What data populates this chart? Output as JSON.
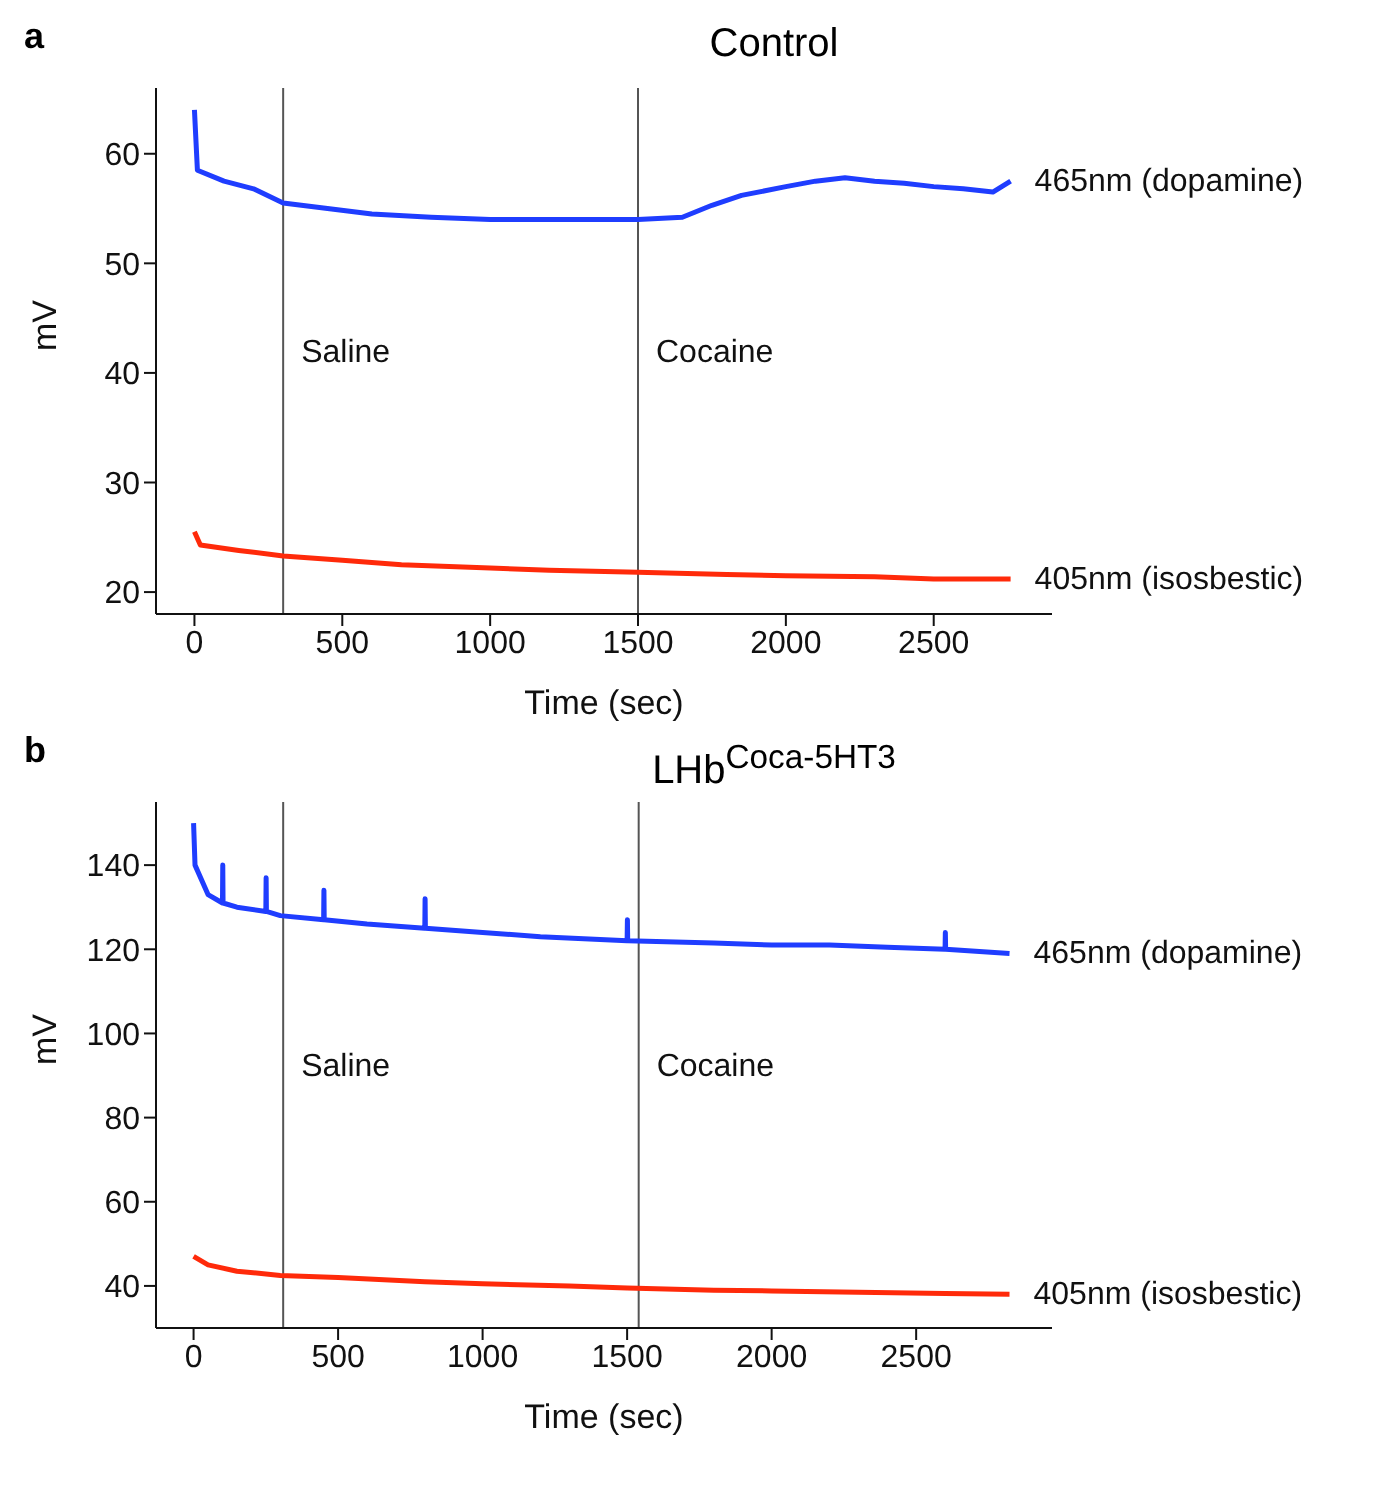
{
  "chart_data": [
    {
      "type": "line",
      "title": "Control",
      "annotations": [
        "a"
      ],
      "xlabel": "Time (sec)",
      "ylabel": "mV",
      "xlim": [
        -130,
        2900
      ],
      "xticks": [
        0,
        500,
        1000,
        1500,
        2000,
        2500
      ],
      "ylim": [
        18,
        66
      ],
      "yticks": [
        20,
        30,
        40,
        50,
        60
      ],
      "grid": false,
      "legend": false,
      "ref_lines": [
        {
          "axis": "x",
          "value": 300,
          "label": "Saline",
          "color": "#555555"
        },
        {
          "axis": "x",
          "value": 1500,
          "label": "Cocaine",
          "color": "#555555"
        }
      ],
      "series": [
        {
          "name": "465nm (dopamine)",
          "color": "#1f3dff",
          "x": [
            0,
            10,
            100,
            200,
            300,
            450,
            600,
            800,
            1000,
            1250,
            1500,
            1650,
            1750,
            1850,
            2000,
            2100,
            2200,
            2300,
            2400,
            2500,
            2600,
            2700,
            2760
          ],
          "values": [
            64,
            58.5,
            57.5,
            56.8,
            55.5,
            55,
            54.5,
            54.2,
            54,
            54,
            54,
            54.2,
            55.3,
            56.2,
            57,
            57.5,
            57.8,
            57.5,
            57.3,
            57,
            56.8,
            56.5,
            57.5
          ]
        },
        {
          "name": "405nm (isosbestic)",
          "color": "#ff2a0a",
          "x": [
            0,
            20,
            150,
            300,
            500,
            700,
            1000,
            1200,
            1500,
            1800,
            2000,
            2300,
            2500,
            2760
          ],
          "values": [
            25.5,
            24.3,
            23.8,
            23.3,
            22.9,
            22.5,
            22.2,
            22,
            21.8,
            21.6,
            21.5,
            21.4,
            21.2,
            21.2
          ]
        }
      ]
    },
    {
      "type": "line",
      "title": "LHb$^{Coca-5HT3}$",
      "annotations": [
        "b"
      ],
      "xlabel": "Time (sec)",
      "ylabel": "mV",
      "xlim": [
        -130,
        2970
      ],
      "xticks": [
        0,
        500,
        1000,
        1500,
        2000,
        2500
      ],
      "ylim": [
        30,
        155
      ],
      "yticks": [
        40,
        60,
        80,
        100,
        120,
        140
      ],
      "grid": false,
      "legend": false,
      "ref_lines": [
        {
          "axis": "x",
          "value": 310,
          "label": "Saline",
          "color": "#555555"
        },
        {
          "axis": "x",
          "value": 1540,
          "label": "Cocaine",
          "color": "#555555"
        }
      ],
      "series": [
        {
          "name": "465nm (dopamine)",
          "color": "#1f3dff",
          "x": [
            0,
            5,
            50,
            100,
            101,
            102,
            150,
            250,
            251,
            252,
            300,
            450,
            451,
            452,
            600,
            800,
            801,
            802,
            1000,
            1200,
            1500,
            1501,
            1502,
            1800,
            2000,
            2200,
            2400,
            2600,
            2601,
            2602,
            2823
          ],
          "values": [
            150,
            140,
            133,
            131,
            140,
            131,
            130,
            129,
            137,
            129,
            128,
            127,
            134,
            127,
            126,
            125,
            132,
            125,
            124,
            123,
            122,
            127,
            122,
            121.5,
            121,
            121,
            120.5,
            120,
            124,
            120,
            119
          ]
        },
        {
          "name": "405nm (isosbestic)",
          "color": "#ff2a0a",
          "x": [
            0,
            50,
            150,
            300,
            500,
            800,
            1000,
            1300,
            1500,
            1800,
            2000,
            2300,
            2600,
            2823
          ],
          "values": [
            47,
            45,
            43.5,
            42.5,
            42,
            41,
            40.5,
            40,
            39.5,
            39,
            38.8,
            38.5,
            38.2,
            38
          ]
        }
      ]
    }
  ]
}
